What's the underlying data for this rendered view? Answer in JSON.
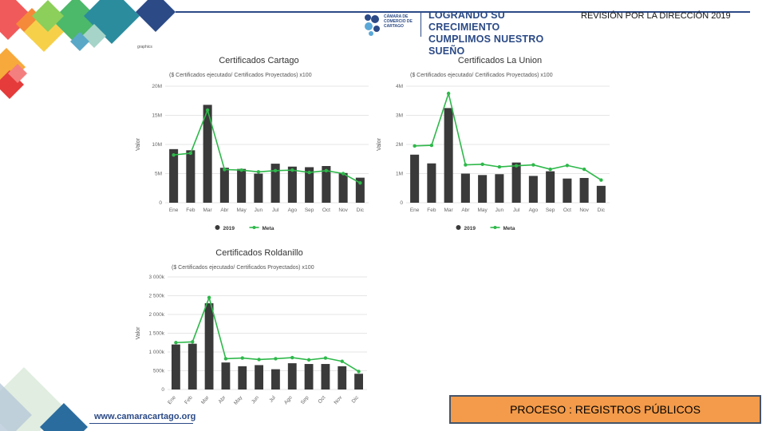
{
  "header": {
    "slogan_line1": "LOGRANDO SU CRECIMIENTO",
    "slogan_line2": "CUMPLIMOS NUESTRO SUEÑO",
    "org_line1": "CÁMARA DE",
    "org_line2": "COMERCIO DE",
    "org_line3": "CARTAGO",
    "review_title": "REVISIÓN POR LA DIRECCIÓN 2019",
    "page_tag": "graphics"
  },
  "footer": {
    "url": "www.camaracartago.org",
    "process": "PROCESO : REGISTROS PÚBLICOS"
  },
  "colors": {
    "bar": "#3a3a3a",
    "line": "#2eb84a",
    "brand": "#2b4a86",
    "process_bg": "#f39b4a",
    "process_border": "#44546a"
  },
  "chart_data": [
    {
      "type": "bar",
      "title": "Certificados Cartago",
      "subtitle": "($ Certificados ejecutado/ Certificados Proyectados) x100",
      "ylabel": "Valor",
      "categories": [
        "Ene",
        "Feb",
        "Mar",
        "Abr",
        "May",
        "Jun",
        "Jul",
        "Ago",
        "Sep",
        "Oct",
        "Nov",
        "Dic"
      ],
      "ylim": [
        0,
        20000000
      ],
      "yticks": [
        0,
        5000000,
        10000000,
        15000000,
        20000000
      ],
      "ytick_labels": [
        "0",
        "5M",
        "10M",
        "15M",
        "20M"
      ],
      "tick_rotate": false,
      "series": [
        {
          "name": "2019",
          "kind": "bar",
          "values": [
            9200000,
            9000000,
            16800000,
            6000000,
            5800000,
            5000000,
            6700000,
            6200000,
            6100000,
            6300000,
            5100000,
            4300000
          ]
        },
        {
          "name": "Meta",
          "kind": "line",
          "values": [
            8200000,
            8500000,
            15900000,
            5700000,
            5600000,
            5300000,
            5500000,
            5600000,
            5200000,
            5500000,
            5000000,
            3400000
          ]
        }
      ]
    },
    {
      "type": "bar",
      "title": "Certificados La Union",
      "subtitle": "($ Certificados ejecutado/ Certificados Proyectados) x100",
      "ylabel": "Valor",
      "categories": [
        "Ene",
        "Feb",
        "Mar",
        "Abr",
        "May",
        "Jun",
        "Jul",
        "Ago",
        "Sep",
        "Oct",
        "Nov",
        "Dic"
      ],
      "ylim": [
        0,
        4000000
      ],
      "yticks": [
        0,
        1000000,
        2000000,
        3000000,
        4000000
      ],
      "ytick_labels": [
        "0",
        "1M",
        "2M",
        "3M",
        "4M"
      ],
      "tick_rotate": false,
      "series": [
        {
          "name": "2019",
          "kind": "bar",
          "values": [
            1650000,
            1350000,
            3250000,
            1000000,
            950000,
            980000,
            1380000,
            920000,
            1080000,
            830000,
            850000,
            580000
          ]
        },
        {
          "name": "Meta",
          "kind": "line",
          "values": [
            1950000,
            1970000,
            3750000,
            1300000,
            1320000,
            1230000,
            1270000,
            1300000,
            1150000,
            1280000,
            1150000,
            780000
          ]
        }
      ]
    },
    {
      "type": "bar",
      "title": "Certificados Roldanillo",
      "subtitle": "($ Certificados ejecutado/ Certificados Proyectados) x100",
      "ylabel": "Valor",
      "categories": [
        "Ene",
        "Feb",
        "Mar",
        "Abr",
        "May",
        "Jun",
        "Jul",
        "Ago",
        "Sep",
        "Oct",
        "Nov",
        "Dic"
      ],
      "ylim": [
        0,
        3000000
      ],
      "yticks": [
        0,
        500000,
        1000000,
        1500000,
        2000000,
        2500000,
        3000000
      ],
      "ytick_labels": [
        "0",
        "500k",
        "1 000k",
        "1 500k",
        "2 000k",
        "2 500k",
        "3 000k"
      ],
      "tick_rotate": true,
      "series": [
        {
          "name": "2019",
          "kind": "bar",
          "values": [
            1200000,
            1220000,
            2300000,
            720000,
            620000,
            650000,
            540000,
            700000,
            680000,
            680000,
            620000,
            420000
          ]
        },
        {
          "name": "Meta",
          "kind": "line",
          "values": [
            1250000,
            1270000,
            2450000,
            820000,
            840000,
            800000,
            820000,
            850000,
            790000,
            840000,
            750000,
            480000
          ]
        }
      ]
    }
  ]
}
